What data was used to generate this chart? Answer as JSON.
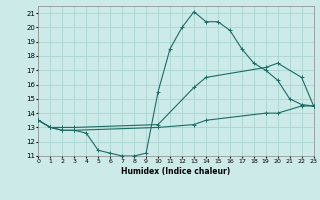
{
  "xlabel": "Humidex (Indice chaleur)",
  "bg_color": "#cceae8",
  "grid_color": "#aad4d0",
  "line_color": "#1e6b65",
  "series": [
    {
      "x": [
        0,
        1,
        2,
        3,
        4,
        5,
        6,
        7,
        8,
        9,
        10,
        11,
        12,
        13,
        14,
        15,
        16,
        17,
        18,
        19,
        20,
        21,
        22,
        23
      ],
      "y": [
        13.5,
        13.0,
        12.8,
        12.8,
        12.6,
        11.4,
        11.2,
        11.0,
        11.0,
        11.2,
        15.5,
        18.5,
        20.0,
        21.1,
        20.4,
        20.4,
        19.8,
        18.5,
        17.5,
        17.0,
        16.3,
        15.0,
        14.6,
        14.5
      ]
    },
    {
      "x": [
        0,
        1,
        2,
        3,
        10,
        13,
        14,
        19,
        20,
        22,
        23
      ],
      "y": [
        13.5,
        13.0,
        13.0,
        13.0,
        13.2,
        15.8,
        16.5,
        17.2,
        17.5,
        16.5,
        14.5
      ]
    },
    {
      "x": [
        0,
        1,
        2,
        3,
        10,
        13,
        14,
        19,
        20,
        22,
        23
      ],
      "y": [
        13.5,
        13.0,
        12.8,
        12.8,
        13.0,
        13.2,
        13.5,
        14.0,
        14.0,
        14.5,
        14.5
      ]
    }
  ],
  "xlim": [
    0,
    23
  ],
  "ylim": [
    11,
    21.5
  ],
  "yticks": [
    11,
    12,
    13,
    14,
    15,
    16,
    17,
    18,
    19,
    20,
    21
  ],
  "xticks": [
    0,
    1,
    2,
    3,
    4,
    5,
    6,
    7,
    8,
    9,
    10,
    11,
    12,
    13,
    14,
    15,
    16,
    17,
    18,
    19,
    20,
    21,
    22,
    23
  ]
}
